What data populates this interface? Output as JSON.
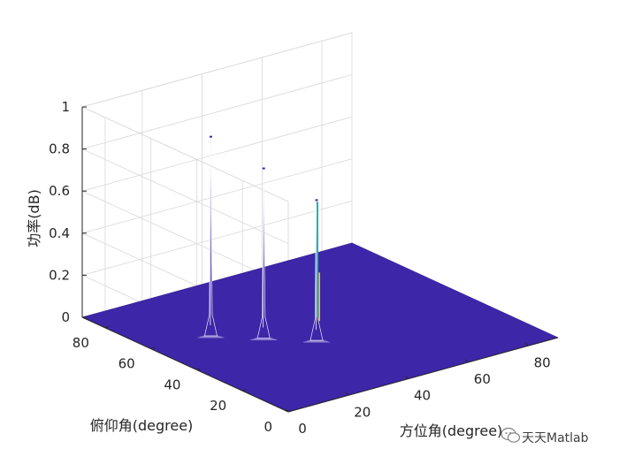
{
  "chart_data": {
    "type": "surface3d",
    "xlabel": "方位角(degree)",
    "ylabel": "俯仰角(degree)",
    "zlabel": "功率(dB)",
    "xlim": [
      0,
      90
    ],
    "ylim": [
      0,
      90
    ],
    "zlim": [
      0,
      1
    ],
    "x_ticks": [
      "0",
      "20",
      "40",
      "60",
      "80"
    ],
    "y_ticks": [
      "0",
      "20",
      "40",
      "60",
      "80"
    ],
    "z_ticks": [
      "0",
      "0.2",
      "0.4",
      "0.6",
      "0.8",
      "1"
    ],
    "grid": true,
    "colormap": "parula",
    "surface_color": "#3e26a8",
    "peaks": [
      {
        "azimuth": 20,
        "elevation": 60,
        "power": 0.93
      },
      {
        "azimuth": 30,
        "elevation": 50,
        "power": 0.79
      },
      {
        "azimuth": 40,
        "elevation": 40,
        "power": 0.65
      }
    ]
  },
  "watermark": {
    "text": "天天Matlab",
    "icon": "wechat-icon"
  }
}
